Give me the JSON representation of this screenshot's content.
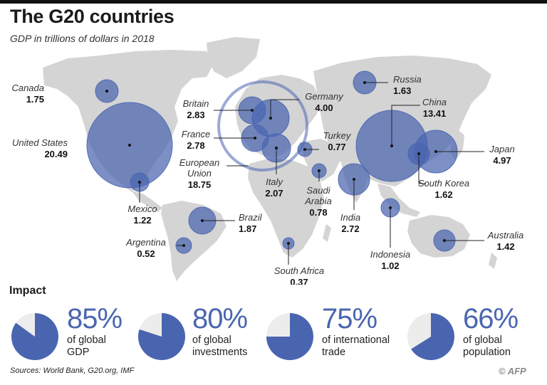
{
  "header": {
    "title": "The G20 countries",
    "subtitle": "GDP in trillions of dollars in 2018"
  },
  "colors": {
    "bubble": "#4a65b0",
    "land": "#d4d4d4",
    "pie_fill": "#4a65b0",
    "pie_rest": "#ececec"
  },
  "countries": [
    {
      "name": "Canada",
      "gdp": "1.75"
    },
    {
      "name": "United States",
      "gdp": "20.49"
    },
    {
      "name": "Mexico",
      "gdp": "1.22"
    },
    {
      "name": "Brazil",
      "gdp": "1.87"
    },
    {
      "name": "Argentina",
      "gdp": "0.52"
    },
    {
      "name": "Britain",
      "gdp": "2.83"
    },
    {
      "name": "France",
      "gdp": "2.78"
    },
    {
      "name": "European Union",
      "gdp": "18.75"
    },
    {
      "name": "Germany",
      "gdp": "4.00"
    },
    {
      "name": "Italy",
      "gdp": "2.07"
    },
    {
      "name": "Turkey",
      "gdp": "0.77"
    },
    {
      "name": "Saudi Arabia",
      "gdp": "0.78"
    },
    {
      "name": "South Africa",
      "gdp": "0.37"
    },
    {
      "name": "Russia",
      "gdp": "1.63"
    },
    {
      "name": "China",
      "gdp": "13.41"
    },
    {
      "name": "Japan",
      "gdp": "4.97"
    },
    {
      "name": "South Korea",
      "gdp": "1.62"
    },
    {
      "name": "India",
      "gdp": "2.72"
    },
    {
      "name": "Indonesia",
      "gdp": "1.02"
    },
    {
      "name": "Australia",
      "gdp": "1.42"
    }
  ],
  "impact": {
    "title": "Impact",
    "stats": [
      {
        "percent": "85%",
        "value": 85,
        "line1": "of global",
        "line2": "GDP"
      },
      {
        "percent": "80%",
        "value": 80,
        "line1": "of global",
        "line2": "investments"
      },
      {
        "percent": "75%",
        "value": 75,
        "line1": "of international",
        "line2": "trade"
      },
      {
        "percent": "66%",
        "value": 66,
        "line1": "of global",
        "line2": "population"
      }
    ]
  },
  "footer": {
    "sources": "Sources: World Bank, G20.org, IMF",
    "credit": "© AFP"
  }
}
